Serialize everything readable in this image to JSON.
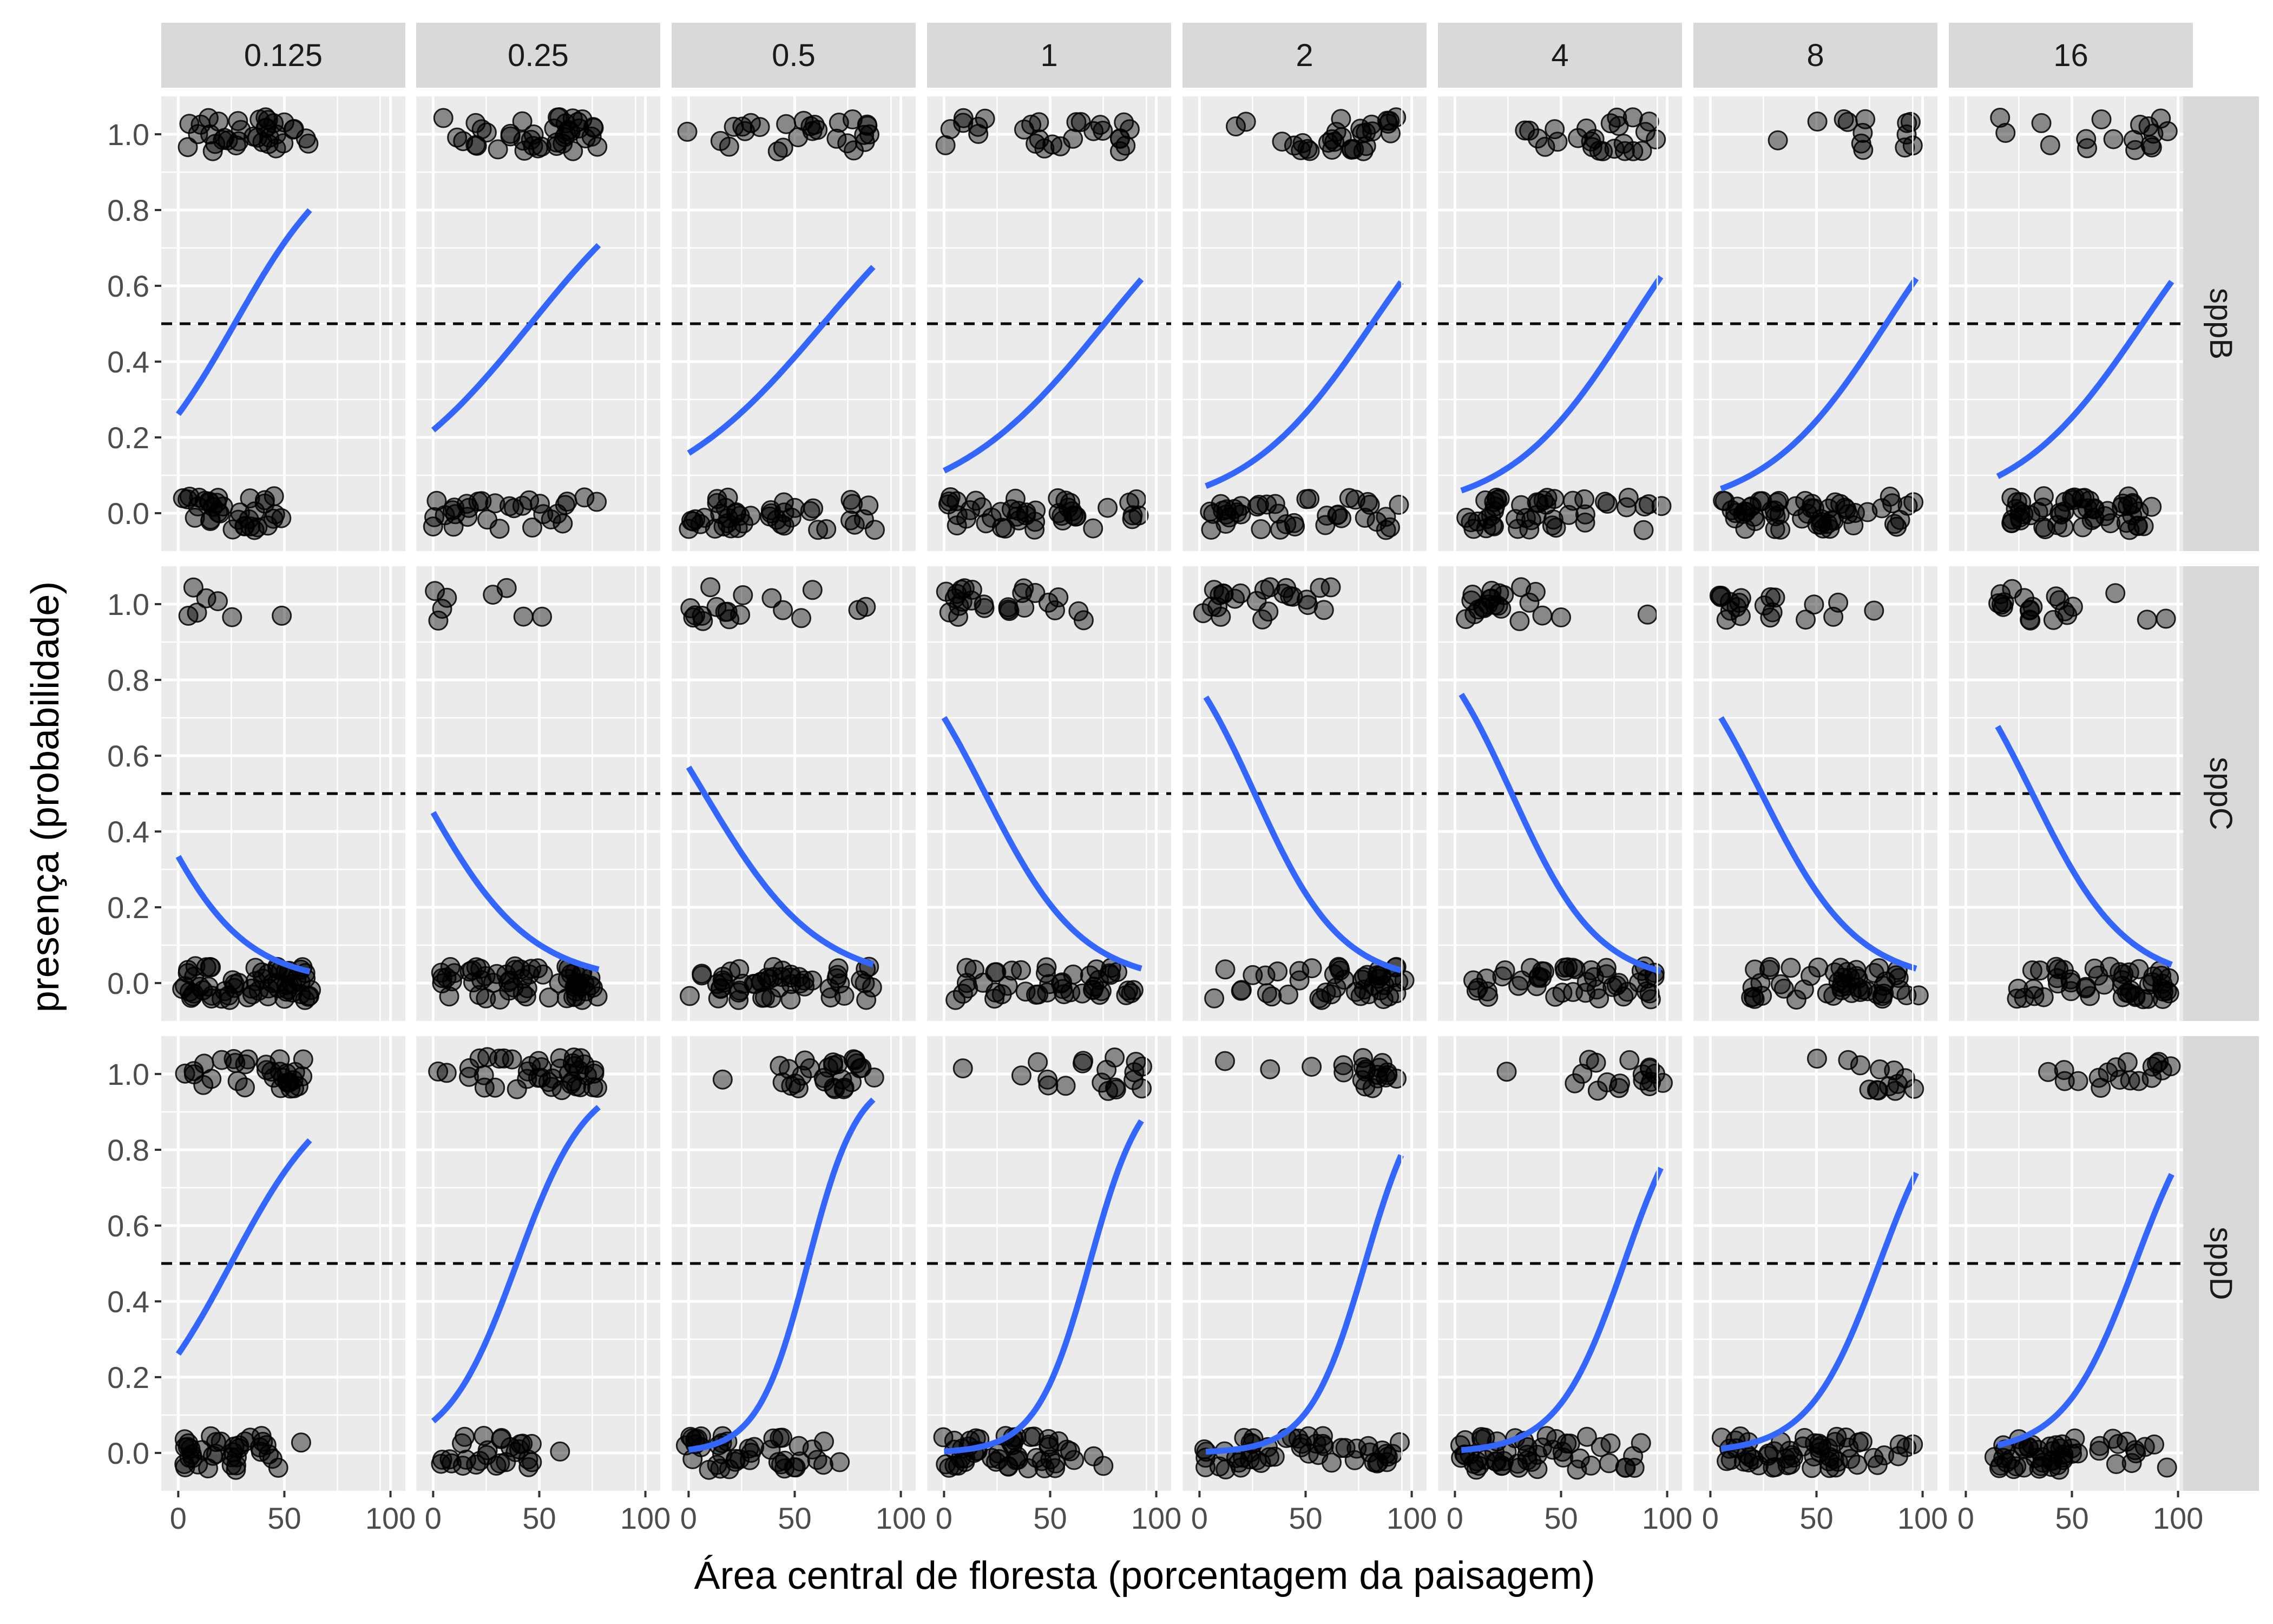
{
  "chart_data": {
    "type": "scatter",
    "title": "",
    "xlabel": "Área central de floresta (porcentagem da paisagem)",
    "ylabel": "presença (probabilidade)",
    "xlim": [
      -8,
      107
    ],
    "ylim": [
      -0.1,
      1.1
    ],
    "x_ticks": [
      "0",
      "50",
      "100"
    ],
    "y_ticks": [
      "0.0",
      "0.2",
      "0.4",
      "0.6",
      "0.8",
      "1.0"
    ],
    "reference_line": 0.5,
    "column_labels": [
      "0.125",
      "0.25",
      "0.5",
      "1",
      "2",
      "4",
      "8",
      "16"
    ],
    "row_labels": [
      "sppB",
      "sppC",
      "sppD"
    ],
    "point_style": {
      "color": "#000000",
      "alpha": 0.45
    },
    "line_color": "#3366FF",
    "panels": [
      [
        {
          "xmin": 0,
          "xmax": 62,
          "b0": -1.04,
          "b1": 0.0391
        },
        {
          "xmin": 0,
          "xmax": 78,
          "b0": -1.27,
          "b1": 0.0276
        },
        {
          "xmin": 0,
          "xmax": 87,
          "b0": -1.67,
          "b1": 0.0263
        },
        {
          "xmin": 0,
          "xmax": 93,
          "b0": -2.07,
          "b1": 0.0274
        },
        {
          "xmin": 3,
          "xmax": 95,
          "b0": -2.66,
          "b1": 0.0327
        },
        {
          "xmin": 3,
          "xmax": 97,
          "b0": -2.86,
          "b1": 0.0347
        },
        {
          "xmin": 5,
          "xmax": 97,
          "b0": -2.85,
          "b1": 0.0344
        },
        {
          "xmin": 15,
          "xmax": 97,
          "b0": -2.72,
          "b1": 0.0327
        }
      ],
      [
        {
          "xmin": 0,
          "xmax": 62,
          "b0": -0.69,
          "b1": -0.0448
        },
        {
          "xmin": 0,
          "xmax": 78,
          "b0": -0.2,
          "b1": -0.0396
        },
        {
          "xmin": 0,
          "xmax": 87,
          "b0": 0.28,
          "b1": -0.0373
        },
        {
          "xmin": 0,
          "xmax": 93,
          "b0": 0.85,
          "b1": -0.0438
        },
        {
          "xmin": 3,
          "xmax": 95,
          "b0": 1.27,
          "b1": -0.0488
        },
        {
          "xmin": 3,
          "xmax": 97,
          "b0": 1.31,
          "b1": -0.0489
        },
        {
          "xmin": 5,
          "xmax": 97,
          "b0": 1.07,
          "b1": -0.0443
        },
        {
          "xmin": 15,
          "xmax": 97,
          "b0": 1.42,
          "b1": -0.0453
        }
      ],
      [
        {
          "xmin": 0,
          "xmax": 62,
          "b0": -1.04,
          "b1": 0.0418
        },
        {
          "xmin": 0,
          "xmax": 78,
          "b0": -2.39,
          "b1": 0.0607
        },
        {
          "xmin": 0,
          "xmax": 87,
          "b0": -4.78,
          "b1": 0.0851
        },
        {
          "xmin": 0,
          "xmax": 93,
          "b0": -5.5,
          "b1": 0.0802
        },
        {
          "xmin": 3,
          "xmax": 95,
          "b0": -5.95,
          "b1": 0.0763
        },
        {
          "xmin": 3,
          "xmax": 97,
          "b0": -5.09,
          "b1": 0.0639
        },
        {
          "xmin": 5,
          "xmax": 97,
          "b0": -4.78,
          "b1": 0.06
        },
        {
          "xmin": 15,
          "xmax": 97,
          "b0": -4.74,
          "b1": 0.0594
        }
      ]
    ],
    "points_note": "Points are jittered presence (1) / absence (0) observations; each panel holds roughly 60-80 observations."
  }
}
